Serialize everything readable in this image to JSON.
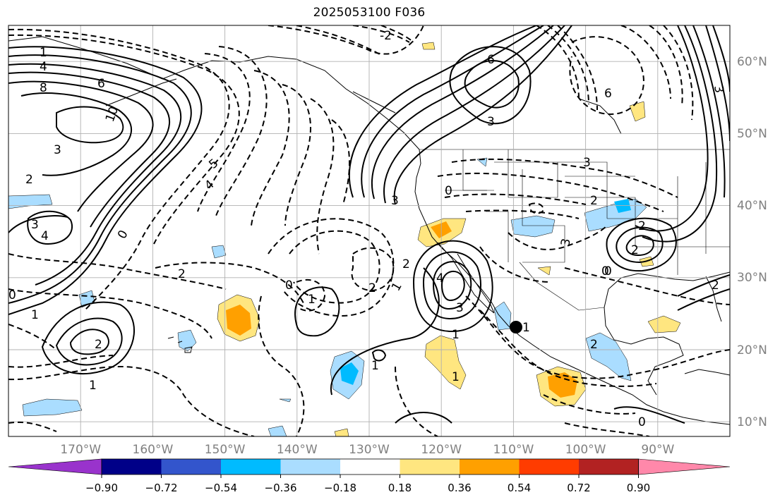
{
  "title": "2025053100 F036",
  "map": {
    "lon_ticks": [
      "170°W",
      "160°W",
      "150°W",
      "140°W",
      "130°W",
      "120°W",
      "110°W",
      "100°W",
      "90°W"
    ],
    "lat_ticks": [
      "60°N",
      "50°N",
      "40°N",
      "30°N",
      "20°N",
      "10°N"
    ],
    "lon_range": [
      "-180",
      "-80"
    ],
    "lat_range": [
      "8",
      "66"
    ],
    "grid": "on",
    "tick_label_color": "#808080",
    "marker": "black dot near 109°W, 23°N"
  },
  "contour_labels": {
    "solid": [
      "1",
      "4",
      "8",
      "6",
      "10",
      "3",
      "2",
      "3",
      "4",
      "6",
      "3",
      "3",
      "4",
      "3",
      "2",
      "1",
      "6",
      "3",
      "2",
      "1",
      "2",
      "3",
      "2",
      "1"
    ],
    "dashed": [
      "-2",
      "4",
      "5",
      "2",
      "0",
      "0",
      "1",
      "2",
      "1",
      "0",
      "2",
      "1",
      "1",
      "2",
      "3",
      "0",
      "0",
      "1",
      "0",
      "2",
      "0"
    ]
  },
  "colorbar": {
    "ticks": [
      "−0.90",
      "−0.72",
      "−0.54",
      "−0.36",
      "−0.18",
      "0.18",
      "0.36",
      "0.54",
      "0.72",
      "0.90"
    ],
    "colors": [
      "#9933cc",
      "#000088",
      "#3355cc",
      "#00bbff",
      "#aaddff",
      "#ffffff",
      "#ffe680",
      "#ffa000",
      "#ff3c00",
      "#b22222",
      "#ff88aa"
    ]
  }
}
